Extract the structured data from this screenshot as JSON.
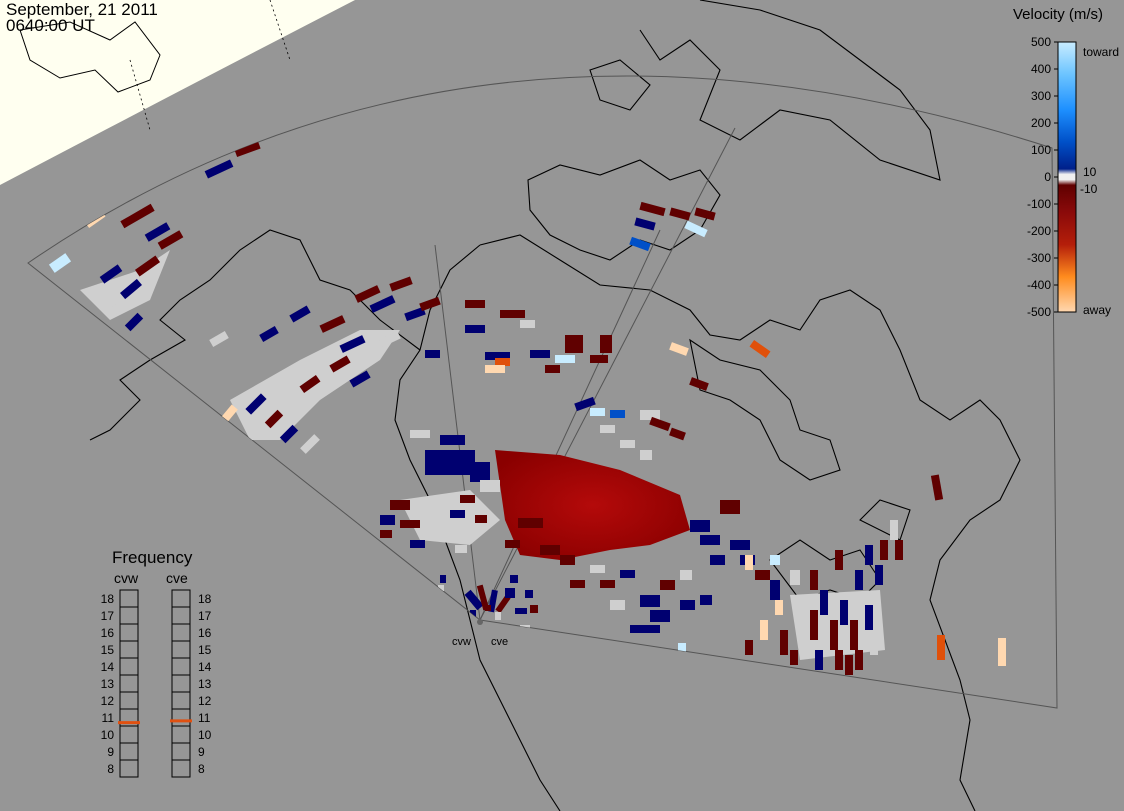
{
  "header": {
    "date": "September, 21 2011",
    "time": "0640:00 UT"
  },
  "colors": {
    "background": "#969696",
    "daylight_cap": "#fffff0",
    "coast": "#000000",
    "fov_outline": "#555555",
    "ground_scatter": "#cfcfcf"
  },
  "velocity_scale": {
    "title": "Velocity (m/s)",
    "ticks": [
      "500",
      "400",
      "300",
      "200",
      "100",
      "0",
      "-100",
      "-200",
      "-300",
      "-400",
      "-500"
    ],
    "inner_ticks": [
      "10",
      "-10"
    ],
    "toward_label": "toward",
    "away_label": "away",
    "toward_colors": [
      "#c8ecff",
      "#6cc4ff",
      "#1e90ff",
      "#0050c8",
      "#00208a",
      "#000070"
    ],
    "away_colors": [
      "#600000",
      "#8a0a0a",
      "#b41e0a",
      "#e0500a",
      "#ff8c1e",
      "#ffd8b0"
    ]
  },
  "frequency_panel": {
    "title": "Frequency",
    "ticks": [
      "18",
      "17",
      "16",
      "15",
      "14",
      "13",
      "12",
      "11",
      "10",
      "9",
      "8"
    ],
    "radars": [
      {
        "name": "cvw",
        "frequency_mhz": 10.7
      },
      {
        "name": "cve",
        "frequency_mhz": 10.8
      }
    ],
    "marker_color": "#e05010"
  },
  "radar_sites": {
    "west_label": "cvw",
    "east_label": "cve"
  }
}
